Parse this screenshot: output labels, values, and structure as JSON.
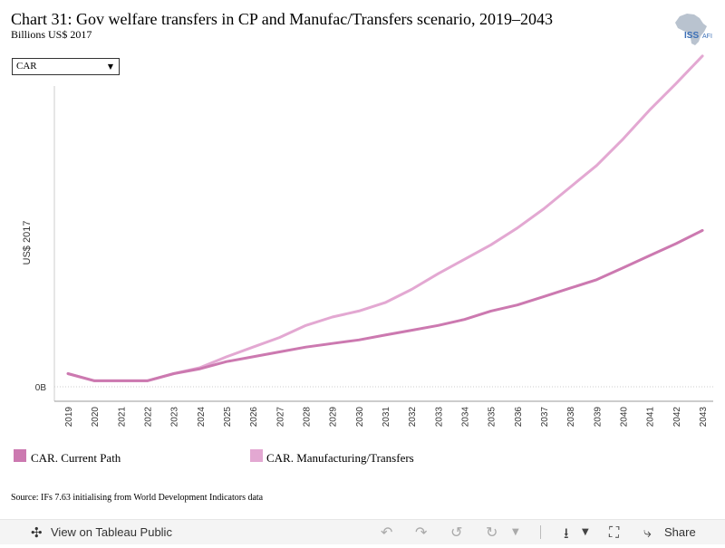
{
  "title": "Chart 31: Gov welfare transfers in CP and Manufac/Transfers scenario, 2019–2043",
  "subtitle": "Billions US$ 2017",
  "logo_text": {
    "iss": "ISS",
    "afi": "AFI"
  },
  "filter": {
    "selected": "CAR"
  },
  "source": "Source: IFs 7.63 initialising from World Development Indicators data",
  "footer": {
    "view_label": "View on Tableau Public",
    "share_label": "Share"
  },
  "colors": {
    "current_path": "#cc79b0",
    "manufacturing": "#e3a8d2",
    "axis": "#999999",
    "gridline": "#cccccc"
  },
  "chart_data": {
    "type": "line",
    "ylabel": "US$ 2017",
    "xlabel": "",
    "y_tick_label": "0B",
    "ylim": [
      -0.12,
      2.5
    ],
    "grid": false,
    "legend_position": "bottom",
    "x": [
      "2019",
      "2020",
      "2021",
      "2022",
      "2023",
      "2024",
      "2025",
      "2026",
      "2027",
      "2028",
      "2029",
      "2030",
      "2031",
      "2032",
      "2033",
      "2034",
      "2035",
      "2036",
      "2037",
      "2038",
      "2039",
      "2040",
      "2041",
      "2042",
      "2043"
    ],
    "series": [
      {
        "name": "CAR. Current Path",
        "color": "#cc79b0",
        "values": [
          0.11,
          0.05,
          0.05,
          0.05,
          0.11,
          0.15,
          0.21,
          0.25,
          0.29,
          0.33,
          0.36,
          0.39,
          0.43,
          0.47,
          0.51,
          0.56,
          0.63,
          0.68,
          0.75,
          0.82,
          0.89,
          0.99,
          1.09,
          1.19,
          1.3
        ]
      },
      {
        "name": "CAR. Manufacturing/Transfers",
        "color": "#e3a8d2",
        "values": [
          0.11,
          0.05,
          0.05,
          0.05,
          0.11,
          0.16,
          0.25,
          0.33,
          0.41,
          0.51,
          0.58,
          0.63,
          0.7,
          0.81,
          0.94,
          1.06,
          1.18,
          1.32,
          1.48,
          1.66,
          1.84,
          2.06,
          2.3,
          2.52,
          2.75
        ]
      }
    ]
  }
}
